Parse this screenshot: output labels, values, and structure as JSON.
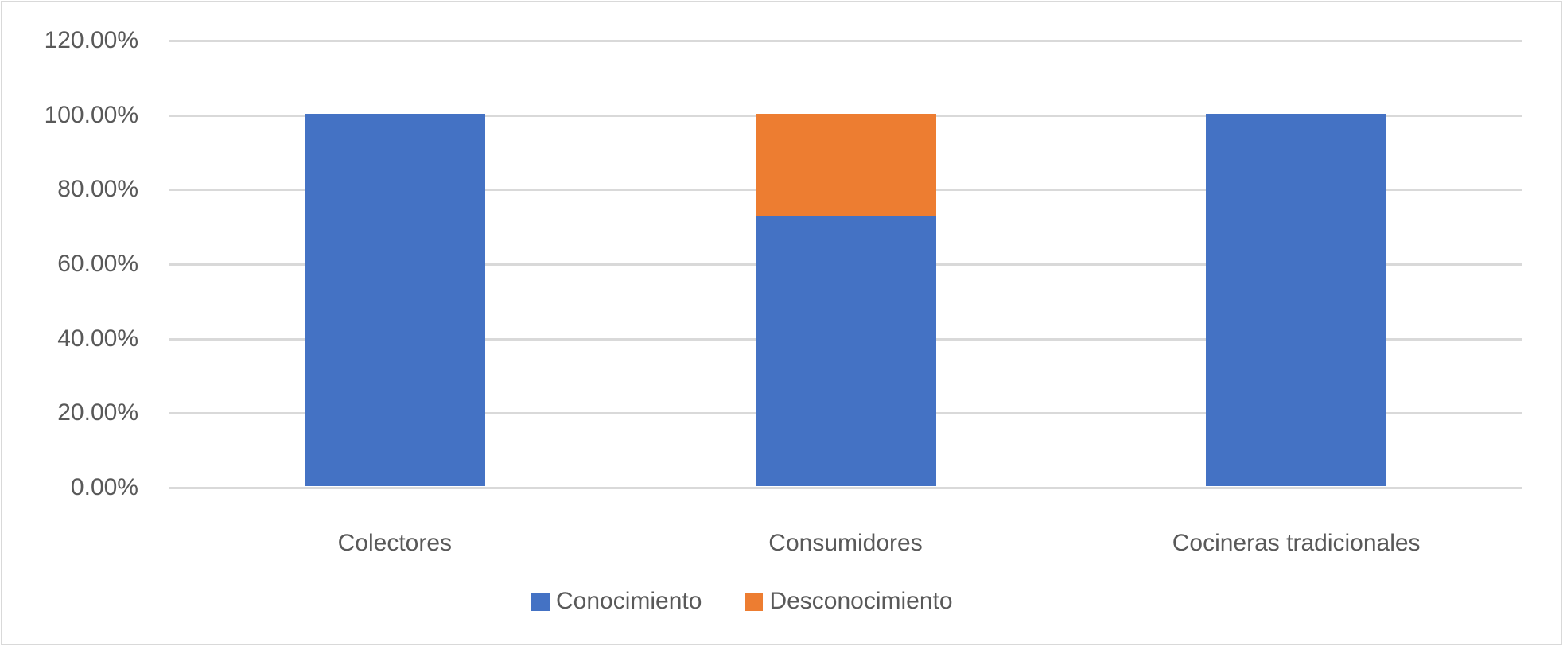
{
  "chart_data": {
    "type": "bar",
    "stacked": true,
    "title": "",
    "xlabel": "",
    "ylabel": "",
    "ylim": [
      0,
      1.2
    ],
    "yticks": [
      "0.00%",
      "20.00%",
      "40.00%",
      "60.00%",
      "80.00%",
      "100.00%",
      "120.00%"
    ],
    "grid": true,
    "legend_position": "bottom",
    "categories": [
      "Colectores",
      "Consumidores",
      "Cocineras tradicionales"
    ],
    "series": [
      {
        "name": "Conocimiento",
        "color": "#4472c4",
        "values": [
          1.0,
          0.727,
          1.0
        ]
      },
      {
        "name": "Desconocimiento",
        "color": "#ed7d31",
        "values": [
          0.0,
          0.273,
          0.0
        ]
      }
    ]
  },
  "axis": {
    "y_labels": [
      "120.00%",
      "100.00%",
      "80.00%",
      "60.00%",
      "40.00%",
      "20.00%",
      "0.00%"
    ]
  },
  "legend": {
    "items": [
      {
        "label": "Conocimiento",
        "color": "#4472c4"
      },
      {
        "label": "Desconocimiento",
        "color": "#ed7d31"
      }
    ]
  }
}
